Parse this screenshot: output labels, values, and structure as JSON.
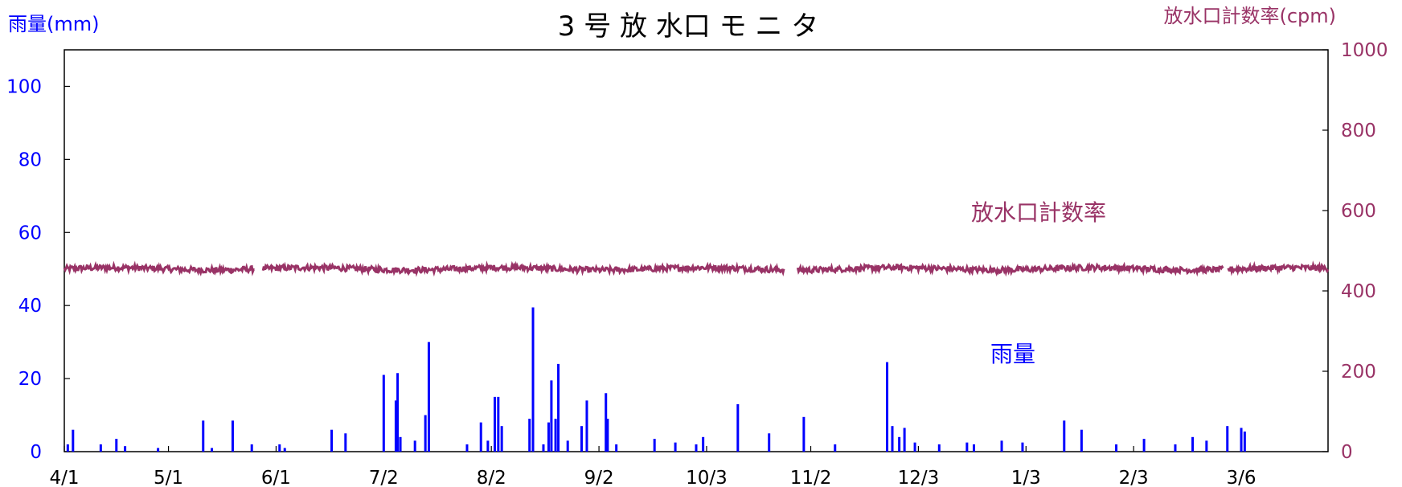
{
  "chart_data": {
    "type": "line",
    "title": "3 号 放 水口 モ ニ タ",
    "y_left": {
      "label": "雨量(mm)",
      "ticks": [
        "0",
        "20",
        "40",
        "60",
        "80",
        "100"
      ],
      "range": [
        0,
        110
      ],
      "color": "#0000ff"
    },
    "y_right": {
      "label": "放水口計数率(cpm)",
      "ticks": [
        "0",
        "200",
        "400",
        "600",
        "800",
        "1000"
      ],
      "range": [
        0,
        1000
      ],
      "color": "#993366"
    },
    "x_axis": {
      "tick_labels": [
        "4/1",
        "5/1",
        "6/1",
        "7/2",
        "8/2",
        "9/2",
        "10/3",
        "11/2",
        "12/3",
        "1/3",
        "2/3",
        "3/6"
      ],
      "tick_days": [
        0,
        30,
        61,
        92,
        123,
        154,
        185,
        215,
        246,
        277,
        308,
        339
      ],
      "range_days": [
        0,
        364
      ]
    },
    "series": [
      {
        "name": "放水口計数率",
        "axis": "right",
        "color": "#993366",
        "mean": 455,
        "gaps_days": [
          [
            55,
            57
          ],
          [
            207.5,
            211
          ],
          [
            334,
            335
          ]
        ]
      },
      {
        "name": "雨量",
        "axis": "left",
        "color": "#0000ff",
        "points": [
          {
            "day": 1,
            "value": 2
          },
          {
            "day": 2.5,
            "value": 6
          },
          {
            "day": 10.5,
            "value": 2
          },
          {
            "day": 15,
            "value": 3.5
          },
          {
            "day": 17.5,
            "value": 1.5
          },
          {
            "day": 27,
            "value": 1
          },
          {
            "day": 40,
            "value": 8.5
          },
          {
            "day": 42.5,
            "value": 1
          },
          {
            "day": 48.5,
            "value": 8.5
          },
          {
            "day": 54,
            "value": 2
          },
          {
            "day": 62,
            "value": 2
          },
          {
            "day": 63.5,
            "value": 1
          },
          {
            "day": 77,
            "value": 6
          },
          {
            "day": 81,
            "value": 5
          },
          {
            "day": 92,
            "value": 21
          },
          {
            "day": 95.5,
            "value": 14
          },
          {
            "day": 96,
            "value": 21.5
          },
          {
            "day": 96.8,
            "value": 4
          },
          {
            "day": 101,
            "value": 3
          },
          {
            "day": 104,
            "value": 10
          },
          {
            "day": 105,
            "value": 30
          },
          {
            "day": 116,
            "value": 2
          },
          {
            "day": 120,
            "value": 8
          },
          {
            "day": 122,
            "value": 3
          },
          {
            "day": 124,
            "value": 15
          },
          {
            "day": 125,
            "value": 15
          },
          {
            "day": 126,
            "value": 7
          },
          {
            "day": 134,
            "value": 9
          },
          {
            "day": 135,
            "value": 39.5
          },
          {
            "day": 138,
            "value": 2
          },
          {
            "day": 139.5,
            "value": 8
          },
          {
            "day": 140.3,
            "value": 19.5
          },
          {
            "day": 141.5,
            "value": 9
          },
          {
            "day": 142.3,
            "value": 24
          },
          {
            "day": 145,
            "value": 3
          },
          {
            "day": 149,
            "value": 7
          },
          {
            "day": 150.5,
            "value": 14
          },
          {
            "day": 156,
            "value": 16
          },
          {
            "day": 156.5,
            "value": 9
          },
          {
            "day": 159,
            "value": 2
          },
          {
            "day": 170,
            "value": 3.5
          },
          {
            "day": 176,
            "value": 2.5
          },
          {
            "day": 182,
            "value": 2
          },
          {
            "day": 184,
            "value": 4
          },
          {
            "day": 194,
            "value": 13
          },
          {
            "day": 203,
            "value": 5
          },
          {
            "day": 213,
            "value": 9.5
          },
          {
            "day": 222,
            "value": 2
          },
          {
            "day": 237,
            "value": 24.5
          },
          {
            "day": 238.5,
            "value": 7
          },
          {
            "day": 240.5,
            "value": 4
          },
          {
            "day": 242,
            "value": 6.5
          },
          {
            "day": 245,
            "value": 2.5
          },
          {
            "day": 252,
            "value": 2
          },
          {
            "day": 260,
            "value": 2.5
          },
          {
            "day": 262,
            "value": 2
          },
          {
            "day": 270,
            "value": 3
          },
          {
            "day": 276,
            "value": 2.5
          },
          {
            "day": 288,
            "value": 8.5
          },
          {
            "day": 293,
            "value": 6
          },
          {
            "day": 303,
            "value": 2
          },
          {
            "day": 311,
            "value": 3.5
          },
          {
            "day": 320,
            "value": 2
          },
          {
            "day": 325,
            "value": 4
          },
          {
            "day": 329,
            "value": 3
          },
          {
            "day": 335,
            "value": 7
          },
          {
            "day": 339,
            "value": 6.5
          },
          {
            "day": 340,
            "value": 5.5
          }
        ]
      }
    ],
    "annotations": [
      {
        "text": "放水口計数率",
        "color": "#993366"
      },
      {
        "text": "雨量",
        "color": "#0000ff"
      }
    ]
  }
}
